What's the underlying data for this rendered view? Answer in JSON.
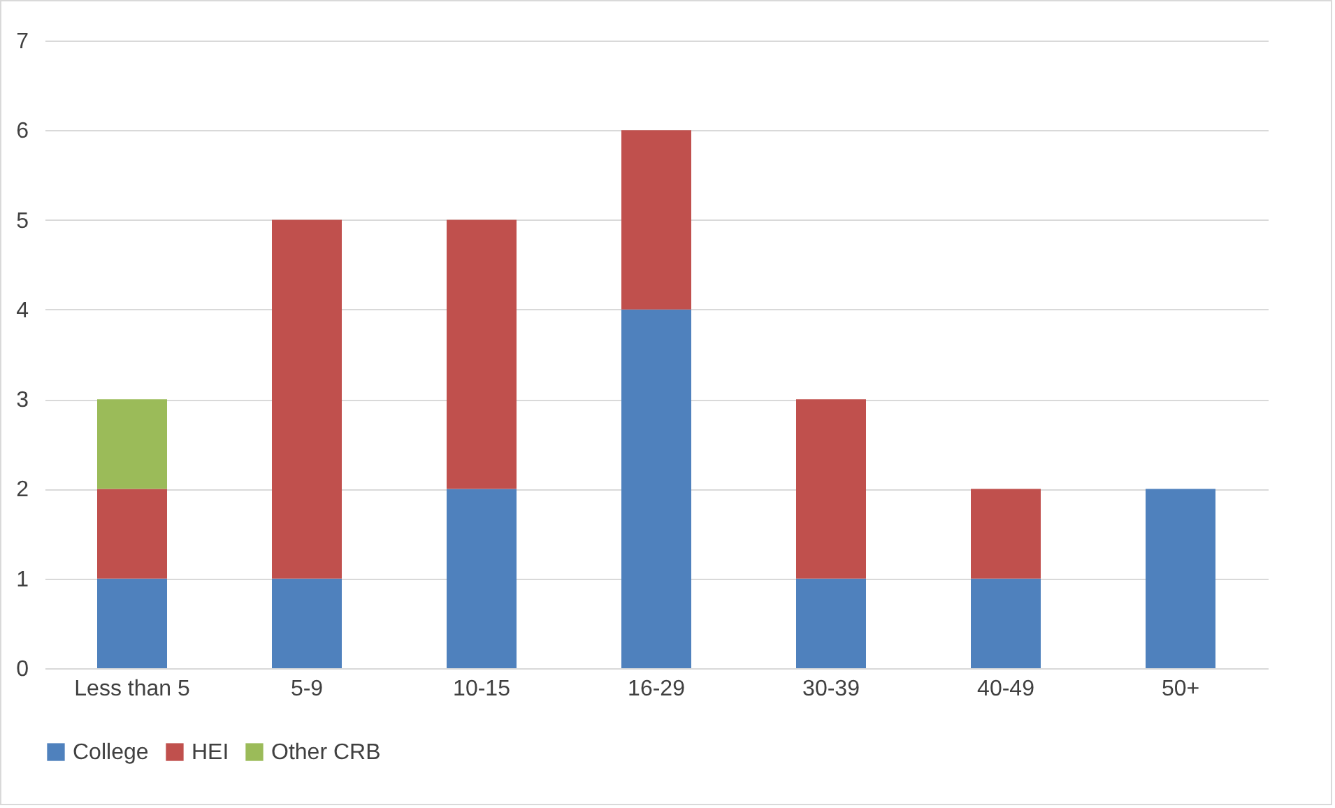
{
  "chart_data": {
    "type": "bar",
    "stacked": true,
    "categories": [
      "Less than 5",
      "5-9",
      "10-15",
      "16-29",
      "30-39",
      "40-49",
      "50+"
    ],
    "series": [
      {
        "name": "College",
        "color": "#4f81bd",
        "values": [
          1,
          1,
          2,
          4,
          1,
          1,
          2
        ]
      },
      {
        "name": "HEI",
        "color": "#c0504d",
        "values": [
          1,
          4,
          3,
          2,
          2,
          1,
          null
        ]
      },
      {
        "name": "Other CRB",
        "color": "#9bbb59",
        "values": [
          1,
          null,
          null,
          null,
          null,
          null,
          null
        ]
      }
    ],
    "ylim": [
      0,
      7
    ],
    "yticks": [
      0,
      1,
      2,
      3,
      4,
      5,
      6,
      7
    ],
    "grid": "y",
    "legend": "bottom"
  }
}
